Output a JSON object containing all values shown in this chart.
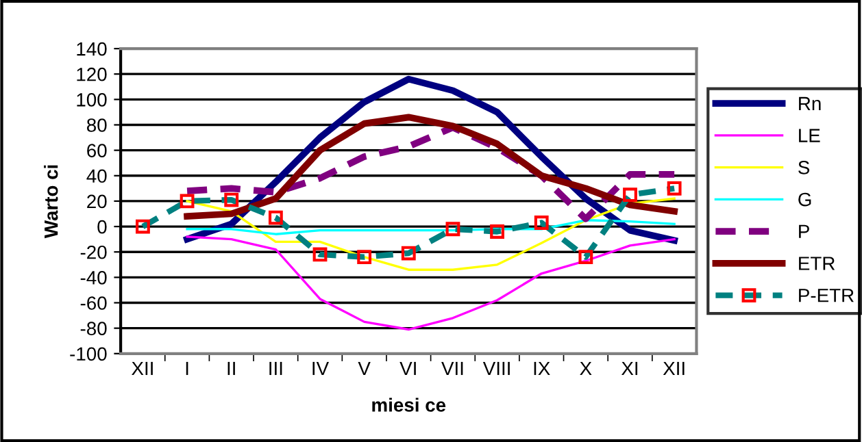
{
  "chart_data": {
    "type": "line",
    "xlabel": "miesi ce",
    "ylabel": "Warto ci",
    "categories": [
      "XII",
      "I",
      "II",
      "III",
      "IV",
      "V",
      "VI",
      "VII",
      "VIII",
      "IX",
      "X",
      "XI",
      "XII"
    ],
    "ylim": [
      -100,
      140
    ],
    "yticks": [
      -100,
      -80,
      -60,
      -40,
      -20,
      0,
      20,
      40,
      60,
      80,
      100,
      120,
      140
    ],
    "grid": "y",
    "legend": "right",
    "series": [
      {
        "name": "Rn",
        "color": "#000080",
        "line_style": "solid",
        "marker": "none",
        "values": [
          null,
          -10,
          2,
          35,
          70,
          98,
          116,
          107,
          90,
          55,
          22,
          -3,
          -11
        ]
      },
      {
        "name": "LE",
        "color": "#ff00ff",
        "line_style": "solid",
        "marker": "none",
        "values": [
          null,
          -8,
          -10,
          -18,
          -57,
          -75,
          -81,
          -72,
          -58,
          -37,
          -27,
          -15,
          -10
        ]
      },
      {
        "name": "S",
        "color": "#ffff00",
        "line_style": "solid",
        "marker": "none",
        "values": [
          null,
          20,
          12,
          -12,
          -12,
          -24,
          -34,
          -34,
          -30,
          -13,
          5,
          18,
          22
        ]
      },
      {
        "name": "G",
        "color": "#00ffff",
        "line_style": "solid",
        "marker": "none",
        "values": [
          null,
          -2,
          -2,
          -6,
          -3,
          -3,
          -3,
          -3,
          -2,
          -2,
          5,
          4,
          2
        ]
      },
      {
        "name": "P",
        "color": "#800080",
        "line_style": "dashed",
        "marker": "none",
        "values": [
          null,
          28,
          30,
          27,
          38,
          55,
          63,
          78,
          62,
          40,
          6,
          41,
          41
        ]
      },
      {
        "name": "ETR",
        "color": "#800000",
        "line_style": "solid",
        "marker": "none",
        "values": [
          null,
          8,
          10,
          22,
          60,
          81,
          86,
          79,
          65,
          40,
          30,
          17,
          12
        ]
      },
      {
        "name": "P-ETR",
        "color": "#008080",
        "line_style": "dashed",
        "marker": "square",
        "values": [
          0,
          20,
          21,
          7,
          -22,
          -24,
          -21,
          -2,
          -4,
          3,
          -24,
          25,
          30
        ]
      }
    ]
  }
}
